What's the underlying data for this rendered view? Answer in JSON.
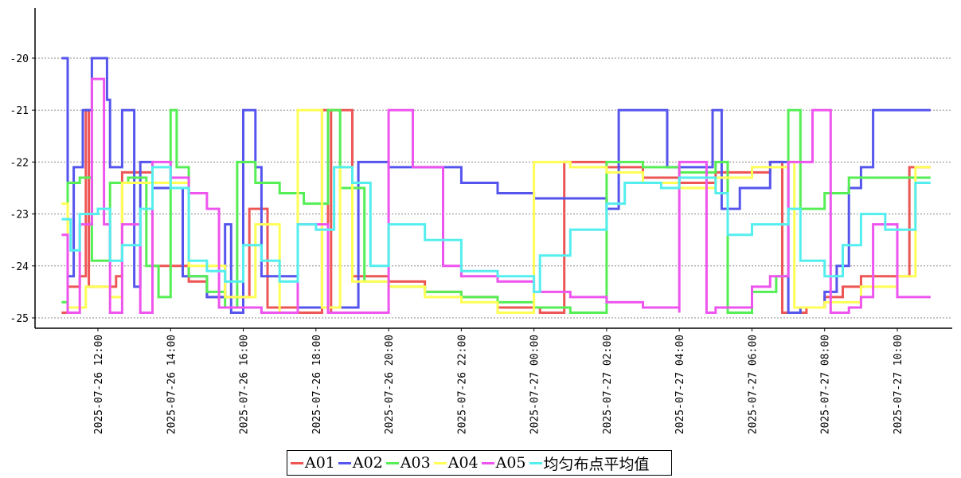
{
  "chart_data": {
    "type": "line",
    "title": "",
    "xlabel": "",
    "ylabel": "",
    "ylim": [
      -25.2,
      -19.0
    ],
    "xlim": [
      "2025-07-26 10:58",
      "2025-07-27 11:35"
    ],
    "yticks": [
      -20,
      -21,
      -22,
      -23,
      -24,
      -25
    ],
    "ytick_labels": [
      "-20",
      "-21",
      "-22",
      "-23",
      "-24",
      "-25"
    ],
    "xticks": [
      "2025-07-26 12:00",
      "2025-07-26 14:00",
      "2025-07-26 16:00",
      "2025-07-26 18:00",
      "2025-07-26 20:00",
      "2025-07-26 22:00",
      "2025-07-27 00:00",
      "2025-07-27 02:00",
      "2025-07-27 04:00",
      "2025-07-27 06:00",
      "2025-07-27 08:00",
      "2025-07-27 10:00"
    ],
    "xtick_labels": [
      "2025-07-26 12:00",
      "2025-07-26 14:00",
      "2025-07-26 16:00",
      "2025-07-26 18:00",
      "2025-07-26 20:00",
      "2025-07-26 22:00",
      "2025-07-27 00:00",
      "2025-07-27 02:00",
      "2025-07-27 04:00",
      "2025-07-27 06:00",
      "2025-07-27 08:00",
      "2025-07-27 10:00"
    ],
    "grid": "horizontal dotted",
    "legend_position": "bottom-center",
    "series": [
      {
        "name": "A01",
        "color": "#ee5555",
        "points": [
          [
            "2025-07-26 11:00",
            -24.9
          ],
          [
            "2025-07-26 11:10",
            -24.4
          ],
          [
            "2025-07-26 11:30",
            -24.2
          ],
          [
            "2025-07-26 11:40",
            -21.0
          ],
          [
            "2025-07-26 11:45",
            -24.4
          ],
          [
            "2025-07-26 12:30",
            -24.2
          ],
          [
            "2025-07-26 12:40",
            -22.2
          ],
          [
            "2025-07-26 13:30",
            -24.0
          ],
          [
            "2025-07-26 14:30",
            -24.3
          ],
          [
            "2025-07-26 15:00",
            -24.6
          ],
          [
            "2025-07-26 15:30",
            -24.6
          ],
          [
            "2025-07-26 16:10",
            -22.9
          ],
          [
            "2025-07-26 16:40",
            -24.8
          ],
          [
            "2025-07-26 17:30",
            -24.9
          ],
          [
            "2025-07-26 18:10",
            -21.0
          ],
          [
            "2025-07-26 18:20",
            -24.9
          ],
          [
            "2025-07-26 18:25",
            -21.0
          ],
          [
            "2025-07-26 19:00",
            -24.2
          ],
          [
            "2025-07-26 20:00",
            -24.3
          ],
          [
            "2025-07-26 21:00",
            -24.5
          ],
          [
            "2025-07-26 22:00",
            -24.6
          ],
          [
            "2025-07-26 23:00",
            -24.8
          ],
          [
            "2025-07-27 00:10",
            -24.9
          ],
          [
            "2025-07-27 00:50",
            -22.0
          ],
          [
            "2025-07-27 02:00",
            -22.1
          ],
          [
            "2025-07-27 03:00",
            -22.3
          ],
          [
            "2025-07-27 04:00",
            -22.4
          ],
          [
            "2025-07-27 05:00",
            -22.2
          ],
          [
            "2025-07-27 06:30",
            -22.0
          ],
          [
            "2025-07-27 06:50",
            -24.9
          ],
          [
            "2025-07-27 07:30",
            -24.8
          ],
          [
            "2025-07-27 08:00",
            -24.6
          ],
          [
            "2025-07-27 08:30",
            -24.4
          ],
          [
            "2025-07-27 09:00",
            -24.2
          ],
          [
            "2025-07-27 09:40",
            -24.2
          ],
          [
            "2025-07-27 10:20",
            -22.1
          ],
          [
            "2025-07-27 10:55",
            -22.1
          ]
        ]
      },
      {
        "name": "A02",
        "color": "#5555ee",
        "points": [
          [
            "2025-07-26 11:00",
            -20.0
          ],
          [
            "2025-07-26 11:10",
            -24.2
          ],
          [
            "2025-07-26 11:20",
            -22.1
          ],
          [
            "2025-07-26 11:35",
            -21.0
          ],
          [
            "2025-07-26 11:50",
            -20.0
          ],
          [
            "2025-07-26 12:15",
            -20.8
          ],
          [
            "2025-07-26 12:20",
            -22.1
          ],
          [
            "2025-07-26 12:40",
            -21.0
          ],
          [
            "2025-07-26 13:00",
            -24.4
          ],
          [
            "2025-07-26 13:10",
            -22.0
          ],
          [
            "2025-07-26 13:30",
            -22.5
          ],
          [
            "2025-07-26 14:20",
            -24.2
          ],
          [
            "2025-07-26 15:00",
            -24.6
          ],
          [
            "2025-07-26 15:30",
            -23.2
          ],
          [
            "2025-07-26 15:40",
            -24.9
          ],
          [
            "2025-07-26 16:00",
            -21.0
          ],
          [
            "2025-07-26 16:20",
            -22.1
          ],
          [
            "2025-07-26 16:30",
            -24.2
          ],
          [
            "2025-07-26 17:30",
            -24.8
          ],
          [
            "2025-07-26 18:00",
            -24.8
          ],
          [
            "2025-07-26 18:40",
            -24.8
          ],
          [
            "2025-07-26 19:10",
            -22.0
          ],
          [
            "2025-07-26 20:00",
            -22.1
          ],
          [
            "2025-07-26 22:00",
            -22.4
          ],
          [
            "2025-07-26 23:00",
            -22.6
          ],
          [
            "2025-07-27 00:00",
            -22.7
          ],
          [
            "2025-07-27 02:00",
            -22.9
          ],
          [
            "2025-07-27 02:20",
            -21.0
          ],
          [
            "2025-07-27 03:40",
            -22.1
          ],
          [
            "2025-07-27 04:40",
            -22.1
          ],
          [
            "2025-07-27 04:55",
            -21.0
          ],
          [
            "2025-07-27 05:10",
            -22.9
          ],
          [
            "2025-07-27 05:40",
            -22.5
          ],
          [
            "2025-07-27 06:30",
            -22.0
          ],
          [
            "2025-07-27 07:00",
            -24.9
          ],
          [
            "2025-07-27 07:20",
            -24.8
          ],
          [
            "2025-07-27 08:00",
            -24.5
          ],
          [
            "2025-07-27 08:20",
            -24.0
          ],
          [
            "2025-07-27 08:40",
            -22.5
          ],
          [
            "2025-07-27 09:00",
            -22.1
          ],
          [
            "2025-07-27 09:20",
            -21.0
          ],
          [
            "2025-07-27 10:55",
            -21.0
          ]
        ]
      },
      {
        "name": "A03",
        "color": "#55ee55",
        "points": [
          [
            "2025-07-26 11:00",
            -24.7
          ],
          [
            "2025-07-26 11:10",
            -22.4
          ],
          [
            "2025-07-26 11:30",
            -22.3
          ],
          [
            "2025-07-26 11:50",
            -23.9
          ],
          [
            "2025-07-26 12:20",
            -22.4
          ],
          [
            "2025-07-26 12:50",
            -22.3
          ],
          [
            "2025-07-26 13:20",
            -24.0
          ],
          [
            "2025-07-26 13:40",
            -24.6
          ],
          [
            "2025-07-26 14:00",
            -21.0
          ],
          [
            "2025-07-26 14:10",
            -22.1
          ],
          [
            "2025-07-26 14:30",
            -24.2
          ],
          [
            "2025-07-26 15:00",
            -24.5
          ],
          [
            "2025-07-26 15:30",
            -24.8
          ],
          [
            "2025-07-26 15:50",
            -22.0
          ],
          [
            "2025-07-26 16:20",
            -22.4
          ],
          [
            "2025-07-26 17:00",
            -22.6
          ],
          [
            "2025-07-26 17:40",
            -22.8
          ],
          [
            "2025-07-26 18:20",
            -21.0
          ],
          [
            "2025-07-26 18:40",
            -22.5
          ],
          [
            "2025-07-26 19:20",
            -24.3
          ],
          [
            "2025-07-26 20:00",
            -24.4
          ],
          [
            "2025-07-26 21:00",
            -24.5
          ],
          [
            "2025-07-26 22:00",
            -24.6
          ],
          [
            "2025-07-26 23:00",
            -24.7
          ],
          [
            "2025-07-27 00:00",
            -24.8
          ],
          [
            "2025-07-27 01:00",
            -24.9
          ],
          [
            "2025-07-27 02:00",
            -22.0
          ],
          [
            "2025-07-27 03:00",
            -22.1
          ],
          [
            "2025-07-27 04:00",
            -22.2
          ],
          [
            "2025-07-27 05:00",
            -22.0
          ],
          [
            "2025-07-27 05:20",
            -24.9
          ],
          [
            "2025-07-27 06:00",
            -24.5
          ],
          [
            "2025-07-27 06:40",
            -24.2
          ],
          [
            "2025-07-27 07:00",
            -21.0
          ],
          [
            "2025-07-27 07:20",
            -22.9
          ],
          [
            "2025-07-27 08:00",
            -22.6
          ],
          [
            "2025-07-27 08:40",
            -22.3
          ],
          [
            "2025-07-27 10:55",
            -22.3
          ]
        ]
      },
      {
        "name": "A04",
        "color": "#ffff55",
        "points": [
          [
            "2025-07-26 11:00",
            -22.8
          ],
          [
            "2025-07-26 11:10",
            -24.8
          ],
          [
            "2025-07-26 11:40",
            -24.4
          ],
          [
            "2025-07-26 12:20",
            -24.6
          ],
          [
            "2025-07-26 12:40",
            -22.4
          ],
          [
            "2025-07-26 14:00",
            -22.4
          ],
          [
            "2025-07-26 14:30",
            -24.0
          ],
          [
            "2025-07-26 15:30",
            -24.6
          ],
          [
            "2025-07-26 16:20",
            -23.2
          ],
          [
            "2025-07-26 17:00",
            -24.9
          ],
          [
            "2025-07-26 17:30",
            -21.0
          ],
          [
            "2025-07-26 18:10",
            -24.8
          ],
          [
            "2025-07-26 18:40",
            -22.1
          ],
          [
            "2025-07-26 19:00",
            -24.3
          ],
          [
            "2025-07-26 20:00",
            -24.4
          ],
          [
            "2025-07-26 21:00",
            -24.6
          ],
          [
            "2025-07-26 22:00",
            -24.7
          ],
          [
            "2025-07-26 23:00",
            -24.9
          ],
          [
            "2025-07-27 00:00",
            -24.9
          ],
          [
            "2025-07-27 00:00",
            -22.0
          ],
          [
            "2025-07-27 01:00",
            -22.1
          ],
          [
            "2025-07-27 02:00",
            -22.2
          ],
          [
            "2025-07-27 03:00",
            -22.4
          ],
          [
            "2025-07-27 04:00",
            -22.5
          ],
          [
            "2025-07-27 05:00",
            -22.3
          ],
          [
            "2025-07-27 06:00",
            -22.1
          ],
          [
            "2025-07-27 07:00",
            -22.0
          ],
          [
            "2025-07-27 07:10",
            -24.8
          ],
          [
            "2025-07-27 08:00",
            -24.7
          ],
          [
            "2025-07-27 09:00",
            -24.4
          ],
          [
            "2025-07-27 10:00",
            -24.2
          ],
          [
            "2025-07-27 10:30",
            -22.1
          ],
          [
            "2025-07-27 10:55",
            -22.1
          ]
        ]
      },
      {
        "name": "A05",
        "color": "#ee55ee",
        "points": [
          [
            "2025-07-26 11:00",
            -23.4
          ],
          [
            "2025-07-26 11:10",
            -24.9
          ],
          [
            "2025-07-26 11:30",
            -23.2
          ],
          [
            "2025-07-26 11:50",
            -20.4
          ],
          [
            "2025-07-26 12:10",
            -23.2
          ],
          [
            "2025-07-26 12:20",
            -24.9
          ],
          [
            "2025-07-26 12:40",
            -23.2
          ],
          [
            "2025-07-26 13:10",
            -24.9
          ],
          [
            "2025-07-26 13:30",
            -22.0
          ],
          [
            "2025-07-26 14:00",
            -22.3
          ],
          [
            "2025-07-26 14:30",
            -22.6
          ],
          [
            "2025-07-26 15:00",
            -22.9
          ],
          [
            "2025-07-26 15:20",
            -24.8
          ],
          [
            "2025-07-26 16:30",
            -24.9
          ],
          [
            "2025-07-26 17:00",
            -24.9
          ],
          [
            "2025-07-26 17:30",
            -23.2
          ],
          [
            "2025-07-26 18:20",
            -24.9
          ],
          [
            "2025-07-26 19:00",
            -24.9
          ],
          [
            "2025-07-26 20:00",
            -21.0
          ],
          [
            "2025-07-26 20:40",
            -22.1
          ],
          [
            "2025-07-26 21:30",
            -24.0
          ],
          [
            "2025-07-26 22:00",
            -24.2
          ],
          [
            "2025-07-26 23:00",
            -24.3
          ],
          [
            "2025-07-27 00:00",
            -24.5
          ],
          [
            "2025-07-27 01:00",
            -24.6
          ],
          [
            "2025-07-27 02:00",
            -24.7
          ],
          [
            "2025-07-27 03:00",
            -24.8
          ],
          [
            "2025-07-27 04:00",
            -24.9
          ],
          [
            "2025-07-27 04:00",
            -22.0
          ],
          [
            "2025-07-27 04:45",
            -24.9
          ],
          [
            "2025-07-27 05:00",
            -24.8
          ],
          [
            "2025-07-27 06:00",
            -24.4
          ],
          [
            "2025-07-27 06:30",
            -24.2
          ],
          [
            "2025-07-27 07:00",
            -22.0
          ],
          [
            "2025-07-27 07:40",
            -21.0
          ],
          [
            "2025-07-27 08:10",
            -24.9
          ],
          [
            "2025-07-27 08:40",
            -24.8
          ],
          [
            "2025-07-27 09:00",
            -24.6
          ],
          [
            "2025-07-27 09:20",
            -23.2
          ],
          [
            "2025-07-27 10:00",
            -24.6
          ],
          [
            "2025-07-27 10:55",
            -24.6
          ]
        ]
      },
      {
        "name": "均匀布点平均值",
        "color": "#55eeee",
        "points": [
          [
            "2025-07-26 11:00",
            -23.1
          ],
          [
            "2025-07-26 11:15",
            -23.7
          ],
          [
            "2025-07-26 11:30",
            -23.0
          ],
          [
            "2025-07-26 12:00",
            -22.9
          ],
          [
            "2025-07-26 12:20",
            -23.9
          ],
          [
            "2025-07-26 12:40",
            -23.6
          ],
          [
            "2025-07-26 13:10",
            -22.9
          ],
          [
            "2025-07-26 13:30",
            -22.1
          ],
          [
            "2025-07-26 14:00",
            -22.5
          ],
          [
            "2025-07-26 14:30",
            -23.9
          ],
          [
            "2025-07-26 15:00",
            -24.1
          ],
          [
            "2025-07-26 15:30",
            -24.3
          ],
          [
            "2025-07-26 16:00",
            -23.6
          ],
          [
            "2025-07-26 16:30",
            -23.9
          ],
          [
            "2025-07-26 17:00",
            -24.3
          ],
          [
            "2025-07-26 17:30",
            -23.2
          ],
          [
            "2025-07-26 18:00",
            -23.3
          ],
          [
            "2025-07-26 18:30",
            -22.1
          ],
          [
            "2025-07-26 19:00",
            -22.4
          ],
          [
            "2025-07-26 19:30",
            -24.0
          ],
          [
            "2025-07-26 20:00",
            -23.2
          ],
          [
            "2025-07-26 21:00",
            -23.5
          ],
          [
            "2025-07-26 22:00",
            -24.1
          ],
          [
            "2025-07-26 23:00",
            -24.2
          ],
          [
            "2025-07-27 00:00",
            -24.5
          ],
          [
            "2025-07-27 00:10",
            -23.8
          ],
          [
            "2025-07-27 01:00",
            -23.3
          ],
          [
            "2025-07-27 02:00",
            -22.8
          ],
          [
            "2025-07-27 02:30",
            -22.4
          ],
          [
            "2025-07-27 03:30",
            -22.5
          ],
          [
            "2025-07-27 04:00",
            -22.3
          ],
          [
            "2025-07-27 05:00",
            -22.6
          ],
          [
            "2025-07-27 05:20",
            -23.4
          ],
          [
            "2025-07-27 06:00",
            -23.2
          ],
          [
            "2025-07-27 07:00",
            -22.9
          ],
          [
            "2025-07-27 07:20",
            -23.9
          ],
          [
            "2025-07-27 08:00",
            -24.2
          ],
          [
            "2025-07-27 08:30",
            -23.6
          ],
          [
            "2025-07-27 09:00",
            -23.0
          ],
          [
            "2025-07-27 09:40",
            -23.3
          ],
          [
            "2025-07-27 10:30",
            -22.4
          ],
          [
            "2025-07-27 10:55",
            -22.4
          ]
        ]
      }
    ]
  }
}
